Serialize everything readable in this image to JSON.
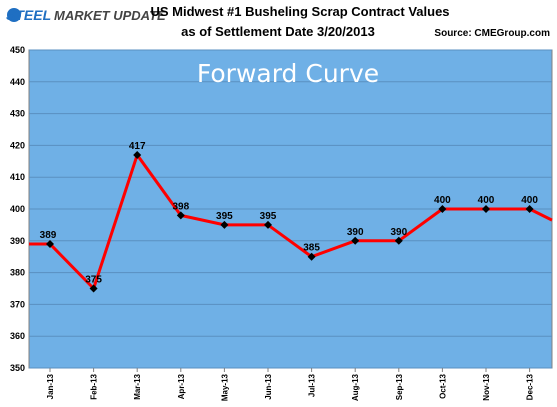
{
  "logo": {
    "primary": "STEEL",
    "secondary": "MARKET UPDATE"
  },
  "header": {
    "title_line1": "US Midwest #1 Busheling Scrap Contract Values",
    "title_line2": "as of Settlement Date 3/20/2013",
    "source": "Source: CMEGroup.com"
  },
  "colors": {
    "plot_background": "#6fb0e6",
    "gridline": "#5a8fc0",
    "line": "#ff0000",
    "marker": "#000000",
    "logo_blue": "#1f6fc2",
    "logo_dark": "#444444"
  },
  "chart_data": {
    "type": "line",
    "title": "US Midwest #1 Busheling Scrap Contract Values as of Settlement Date 3/20/2013",
    "annotation": "Forward Curve",
    "xlabel": "",
    "ylabel": "",
    "categories": [
      "Jan-13",
      "Feb-13",
      "Mar-13",
      "Apr-13",
      "May-13",
      "Jun-13",
      "Jul-13",
      "Aug-13",
      "Sep-13",
      "Oct-13",
      "Nov-13",
      "Dec-13"
    ],
    "values": [
      389,
      375,
      417,
      398,
      395,
      395,
      385,
      390,
      390,
      400,
      400,
      400
    ],
    "data_labels": [
      "389",
      "375",
      "417",
      "398",
      "395",
      "395",
      "385",
      "390",
      "390",
      "400",
      "400",
      "400"
    ],
    "ylim": [
      350,
      450
    ],
    "yticks": [
      350,
      360,
      370,
      380,
      390,
      400,
      410,
      420,
      430,
      440,
      450
    ],
    "grid": true,
    "legend": "none"
  }
}
